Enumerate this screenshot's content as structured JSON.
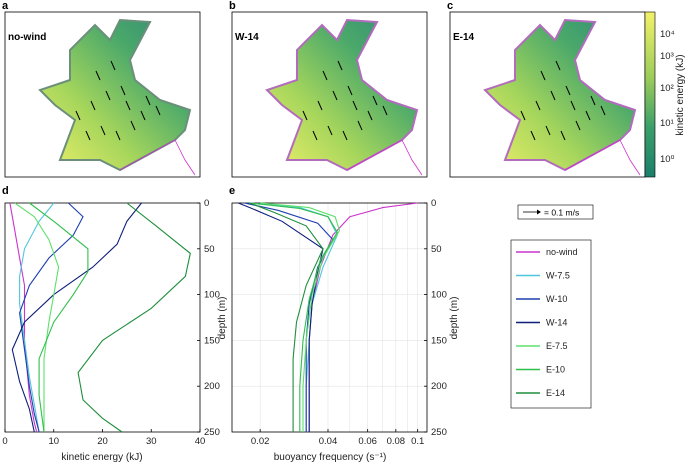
{
  "maps": {
    "panels": [
      {
        "letter": "a",
        "name": "no-wind"
      },
      {
        "letter": "b",
        "name": "W-14"
      },
      {
        "letter": "c",
        "name": "E-14"
      }
    ],
    "colorbar": {
      "label": "kinetic energy (kJ)",
      "ticks": [
        "10⁰",
        "10¹",
        "10²",
        "10³",
        "10⁴"
      ]
    },
    "scale_arrow_label": "= 0.1 m/s"
  },
  "colors": {
    "no-wind": "#cc33cc",
    "W-7.5": "#4fc6dc",
    "W-10": "#1f3fb0",
    "W-14": "#0e1f7a",
    "E-7.5": "#5ee06a",
    "E-10": "#2fbf4a",
    "E-14": "#1e8f3c",
    "map_low": "#1b8a6b",
    "map_high": "#f0f06a"
  },
  "legend": [
    "no-wind",
    "W-7.5",
    "W-10",
    "W-14",
    "E-7.5",
    "E-10",
    "E-14"
  ],
  "chart_data": [
    {
      "type": "line",
      "panel": "d",
      "xlabel": "kinetic energy (kJ)",
      "ylabel": "depth (m)",
      "xlim": [
        0,
        40
      ],
      "ylim": [
        250,
        0
      ],
      "xticks": [
        0,
        10,
        20,
        30,
        40
      ],
      "yticks": [
        0,
        50,
        100,
        150,
        200,
        250
      ],
      "grid": false,
      "series": [
        {
          "name": "no-wind",
          "points": [
            [
              1,
              0
            ],
            [
              2,
              30
            ],
            [
              3,
              60
            ],
            [
              4,
              90
            ],
            [
              4,
              120
            ],
            [
              4,
              150
            ],
            [
              4.5,
              180
            ],
            [
              5,
              210
            ],
            [
              6,
              240
            ],
            [
              6.5,
              250
            ]
          ]
        },
        {
          "name": "W-7.5",
          "points": [
            [
              10,
              0
            ],
            [
              7,
              20
            ],
            [
              4,
              50
            ],
            [
              3,
              80
            ],
            [
              3,
              110
            ],
            [
              4,
              150
            ],
            [
              5,
              190
            ],
            [
              6,
              220
            ],
            [
              7,
              250
            ]
          ]
        },
        {
          "name": "W-10",
          "points": [
            [
              13,
              0
            ],
            [
              16,
              15
            ],
            [
              14,
              35
            ],
            [
              9,
              60
            ],
            [
              5,
              90
            ],
            [
              3,
              120
            ],
            [
              4,
              160
            ],
            [
              5,
              200
            ],
            [
              6,
              230
            ],
            [
              7,
              250
            ]
          ]
        },
        {
          "name": "W-14",
          "points": [
            [
              28,
              0
            ],
            [
              25,
              20
            ],
            [
              23,
              45
            ],
            [
              18,
              70
            ],
            [
              10,
              100
            ],
            [
              4,
              130
            ],
            [
              1.5,
              160
            ],
            [
              3,
              195
            ],
            [
              5,
              225
            ],
            [
              6,
              250
            ]
          ]
        },
        {
          "name": "E-7.5",
          "points": [
            [
              2,
              0
            ],
            [
              6,
              15
            ],
            [
              9,
              40
            ],
            [
              11,
              70
            ],
            [
              10,
              100
            ],
            [
              9,
              130
            ],
            [
              8,
              170
            ],
            [
              8,
              210
            ],
            [
              8,
              250
            ]
          ]
        },
        {
          "name": "E-10",
          "points": [
            [
              5,
              0
            ],
            [
              10,
              20
            ],
            [
              17,
              50
            ],
            [
              17,
              75
            ],
            [
              14,
              100
            ],
            [
              10,
              130
            ],
            [
              7,
              170
            ],
            [
              7,
              210
            ],
            [
              8,
              250
            ]
          ]
        },
        {
          "name": "E-14",
          "points": [
            [
              25,
              0
            ],
            [
              31,
              25
            ],
            [
              38,
              55
            ],
            [
              37,
              80
            ],
            [
              30,
              115
            ],
            [
              20,
              150
            ],
            [
              15,
              185
            ],
            [
              16,
              215
            ],
            [
              20,
              235
            ],
            [
              24,
              250
            ]
          ]
        }
      ]
    },
    {
      "type": "line",
      "panel": "e",
      "xlabel": "buoyancy frequency (s⁻¹)",
      "ylabel": "depth (m)",
      "xscale": "log",
      "xlim": [
        0.015,
        0.11
      ],
      "ylim": [
        250,
        0
      ],
      "xticks": [
        0.02,
        0.04,
        0.06,
        0.08,
        0.1
      ],
      "yticks": [
        0,
        50,
        100,
        150,
        200,
        250
      ],
      "grid": true,
      "series": [
        {
          "name": "no-wind",
          "points": [
            [
              0.1,
              0
            ],
            [
              0.07,
              5
            ],
            [
              0.05,
              15
            ],
            [
              0.042,
              35
            ],
            [
              0.037,
              70
            ],
            [
              0.034,
              110
            ],
            [
              0.033,
              150
            ],
            [
              0.033,
              200
            ],
            [
              0.033,
              250
            ]
          ]
        },
        {
          "name": "W-7.5",
          "points": [
            [
              0.018,
              0
            ],
            [
              0.03,
              5
            ],
            [
              0.04,
              15
            ],
            [
              0.044,
              35
            ],
            [
              0.038,
              70
            ],
            [
              0.034,
              110
            ],
            [
              0.033,
              150
            ],
            [
              0.032,
              200
            ],
            [
              0.032,
              250
            ]
          ]
        },
        {
          "name": "W-10",
          "points": [
            [
              0.017,
              0
            ],
            [
              0.024,
              8
            ],
            [
              0.036,
              22
            ],
            [
              0.042,
              40
            ],
            [
              0.036,
              70
            ],
            [
              0.033,
              110
            ],
            [
              0.032,
              150
            ],
            [
              0.032,
              200
            ],
            [
              0.032,
              250
            ]
          ]
        },
        {
          "name": "W-14",
          "points": [
            [
              0.016,
              0
            ],
            [
              0.018,
              5
            ],
            [
              0.025,
              20
            ],
            [
              0.038,
              50
            ],
            [
              0.036,
              75
            ],
            [
              0.034,
              110
            ],
            [
              0.033,
              150
            ],
            [
              0.033,
              200
            ],
            [
              0.033,
              250
            ]
          ]
        },
        {
          "name": "E-7.5",
          "points": [
            [
              0.02,
              0
            ],
            [
              0.033,
              5
            ],
            [
              0.043,
              15
            ],
            [
              0.045,
              30
            ],
            [
              0.038,
              60
            ],
            [
              0.034,
              100
            ],
            [
              0.032,
              150
            ],
            [
              0.031,
              200
            ],
            [
              0.031,
              250
            ]
          ]
        },
        {
          "name": "E-10",
          "points": [
            [
              0.018,
              0
            ],
            [
              0.03,
              6
            ],
            [
              0.04,
              15
            ],
            [
              0.044,
              32
            ],
            [
              0.037,
              62
            ],
            [
              0.033,
              105
            ],
            [
              0.031,
              150
            ],
            [
              0.03,
              200
            ],
            [
              0.03,
              250
            ]
          ]
        },
        {
          "name": "E-14",
          "points": [
            [
              0.018,
              0
            ],
            [
              0.023,
              10
            ],
            [
              0.032,
              25
            ],
            [
              0.038,
              50
            ],
            [
              0.032,
              90
            ],
            [
              0.029,
              130
            ],
            [
              0.028,
              170
            ],
            [
              0.028,
              210
            ],
            [
              0.028,
              250
            ]
          ]
        }
      ]
    }
  ]
}
